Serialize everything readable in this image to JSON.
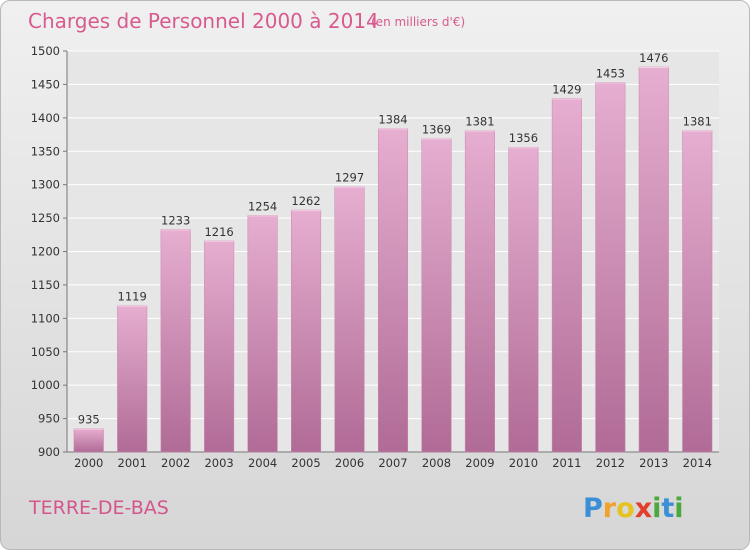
{
  "chart_data": {
    "type": "bar",
    "title": "Charges de Personnel 2000 à 2014",
    "subtitle": "(en milliers d'€)",
    "categories": [
      "2000",
      "2001",
      "2002",
      "2003",
      "2004",
      "2005",
      "2006",
      "2007",
      "2008",
      "2009",
      "2010",
      "2011",
      "2012",
      "2013",
      "2014"
    ],
    "values": [
      935,
      1119,
      1233,
      1216,
      1254,
      1262,
      1297,
      1384,
      1369,
      1381,
      1356,
      1429,
      1453,
      1476,
      1381
    ],
    "ylim": [
      900,
      1500
    ],
    "yticks": [
      "900",
      "950",
      "1000",
      "1050",
      "1100",
      "1150",
      "1200",
      "1250",
      "1300",
      "1350",
      "1400",
      "1450",
      "1500"
    ],
    "grid": true,
    "bar_color": "#d787b3"
  },
  "place": "TERRE-DE-BAS",
  "logo": {
    "letters": [
      "P",
      "r",
      "o",
      "x",
      "i",
      "t",
      "i"
    ],
    "colors": [
      "#3b8fd6",
      "#f0a22a",
      "#e8c21e",
      "#e23d2d",
      "#4aa83d",
      "#3b8fd6",
      "#4aa83d"
    ]
  }
}
